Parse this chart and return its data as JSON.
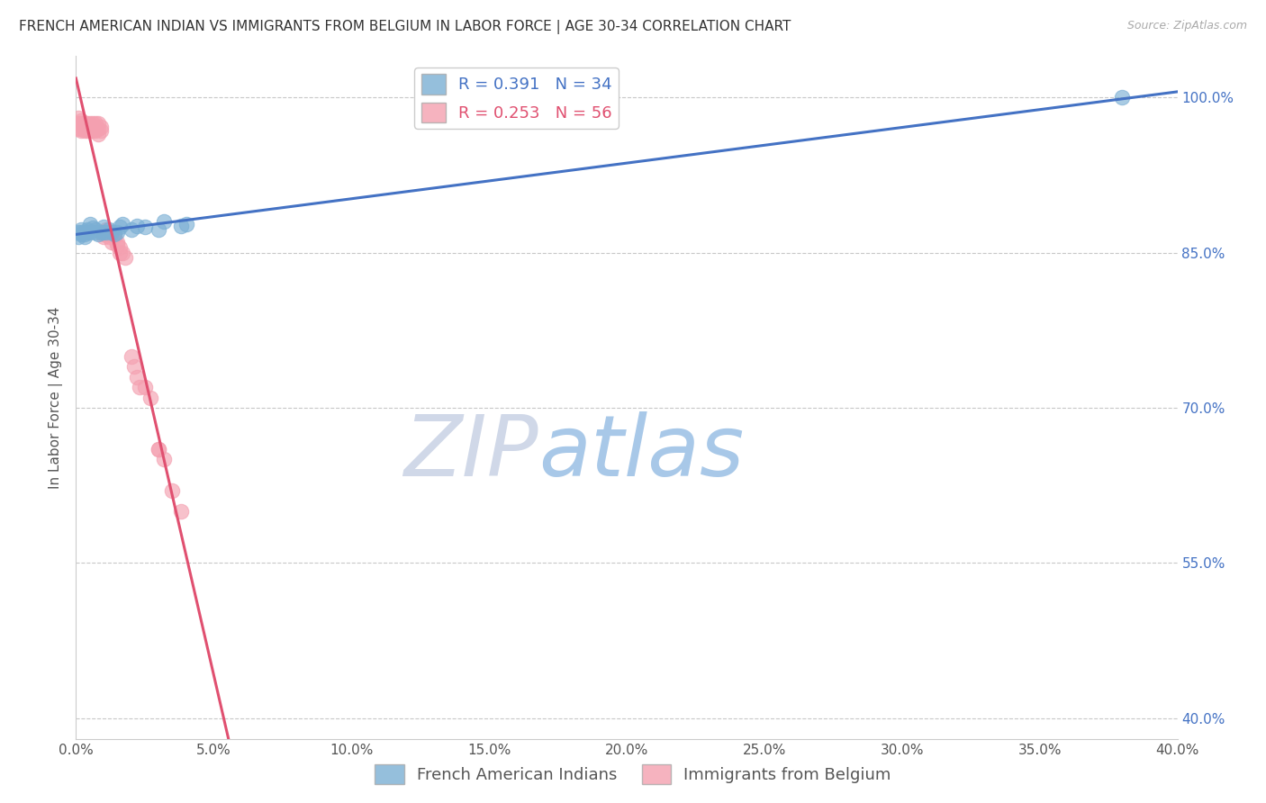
{
  "title": "FRENCH AMERICAN INDIAN VS IMMIGRANTS FROM BELGIUM IN LABOR FORCE | AGE 30-34 CORRELATION CHART",
  "source": "Source: ZipAtlas.com",
  "ylabel": "In Labor Force | Age 30-34",
  "xlim": [
    0.0,
    0.4
  ],
  "ylim": [
    0.38,
    1.04
  ],
  "xticks": [
    0.0,
    0.05,
    0.1,
    0.15,
    0.2,
    0.25,
    0.3,
    0.35,
    0.4
  ],
  "yticks_right": [
    1.0,
    0.85,
    0.7,
    0.55,
    0.4
  ],
  "ytick_labels_right": [
    "100.0%",
    "85.0%",
    "70.0%",
    "55.0%",
    "40.0%"
  ],
  "xtick_labels": [
    "0.0%",
    "5.0%",
    "10.0%",
    "15.0%",
    "20.0%",
    "25.0%",
    "30.0%",
    "35.0%",
    "40.0%"
  ],
  "blue_color": "#7bafd4",
  "pink_color": "#f4a0b0",
  "blue_line_color": "#4472c4",
  "pink_line_color": "#e05070",
  "blue_R": 0.391,
  "blue_N": 34,
  "pink_R": 0.253,
  "pink_N": 56,
  "legend_blue_label": "French American Indians",
  "legend_pink_label": "Immigrants from Belgium",
  "watermark_zip": "ZIP",
  "watermark_atlas": "atlas",
  "blue_scatter_x": [
    0.001,
    0.001,
    0.002,
    0.002,
    0.002,
    0.003,
    0.003,
    0.003,
    0.004,
    0.004,
    0.005,
    0.005,
    0.006,
    0.007,
    0.007,
    0.008,
    0.009,
    0.01,
    0.01,
    0.011,
    0.012,
    0.013,
    0.014,
    0.015,
    0.016,
    0.017,
    0.02,
    0.022,
    0.025,
    0.03,
    0.032,
    0.038,
    0.04,
    0.38
  ],
  "blue_scatter_y": [
    0.87,
    0.865,
    0.87,
    0.868,
    0.872,
    0.87,
    0.865,
    0.868,
    0.872,
    0.87,
    0.87,
    0.878,
    0.874,
    0.872,
    0.87,
    0.868,
    0.87,
    0.87,
    0.875,
    0.87,
    0.872,
    0.87,
    0.868,
    0.87,
    0.875,
    0.878,
    0.872,
    0.876,
    0.875,
    0.872,
    0.88,
    0.876,
    0.878,
    1.0
  ],
  "pink_scatter_x": [
    0.001,
    0.001,
    0.001,
    0.002,
    0.002,
    0.002,
    0.002,
    0.003,
    0.003,
    0.003,
    0.003,
    0.004,
    0.004,
    0.004,
    0.005,
    0.005,
    0.005,
    0.005,
    0.006,
    0.006,
    0.006,
    0.007,
    0.007,
    0.007,
    0.008,
    0.008,
    0.008,
    0.009,
    0.009,
    0.01,
    0.01,
    0.01,
    0.011,
    0.011,
    0.012,
    0.012,
    0.013,
    0.013,
    0.014,
    0.015,
    0.015,
    0.016,
    0.016,
    0.017,
    0.018,
    0.02,
    0.021,
    0.022,
    0.023,
    0.025,
    0.027,
    0.03,
    0.03,
    0.032,
    0.035,
    0.038
  ],
  "pink_scatter_y": [
    0.98,
    0.975,
    0.97,
    0.978,
    0.975,
    0.97,
    0.968,
    0.975,
    0.972,
    0.97,
    0.968,
    0.975,
    0.97,
    0.968,
    0.975,
    0.97,
    0.968,
    0.972,
    0.975,
    0.97,
    0.968,
    0.975,
    0.972,
    0.968,
    0.975,
    0.97,
    0.965,
    0.968,
    0.972,
    0.87,
    0.868,
    0.865,
    0.868,
    0.872,
    0.87,
    0.865,
    0.86,
    0.868,
    0.865,
    0.86,
    0.858,
    0.855,
    0.85,
    0.85,
    0.845,
    0.75,
    0.74,
    0.73,
    0.72,
    0.72,
    0.71,
    0.66,
    0.66,
    0.65,
    0.62,
    0.6
  ],
  "title_fontsize": 11,
  "axis_label_fontsize": 11,
  "tick_fontsize": 11,
  "legend_fontsize": 13,
  "right_axis_color": "#4472c4",
  "grid_color": "#c8c8c8",
  "background_color": "#ffffff"
}
